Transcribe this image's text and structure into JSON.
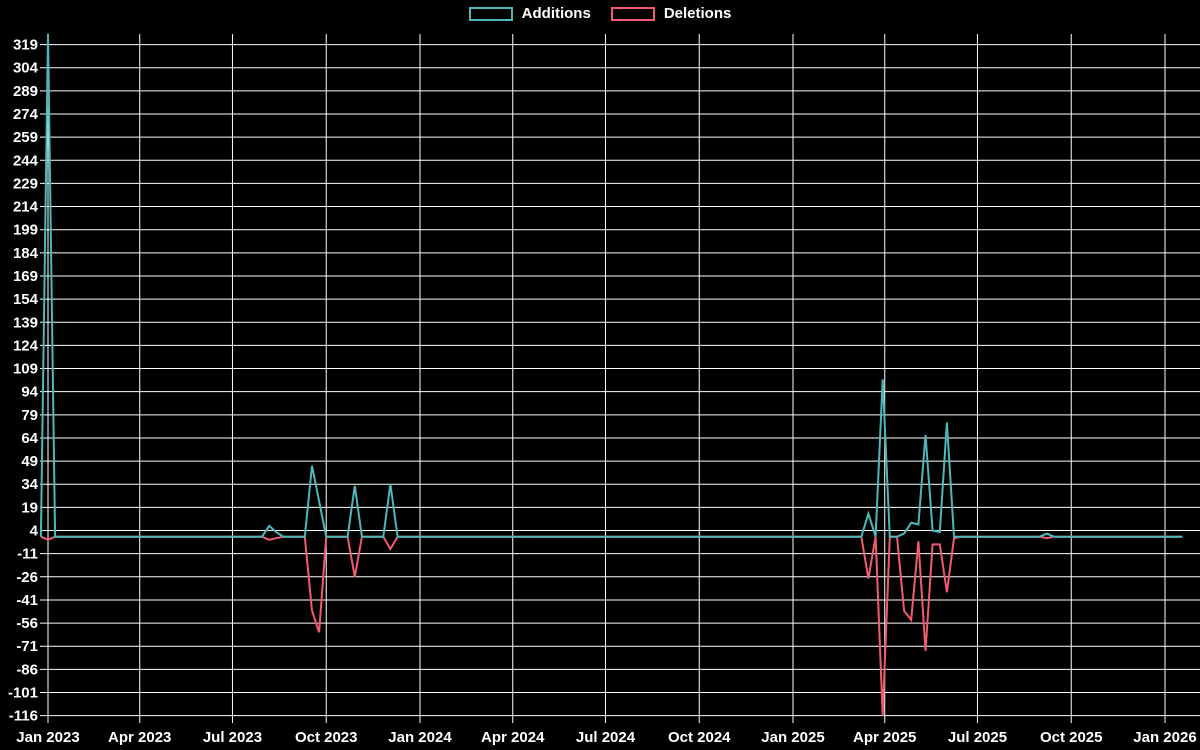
{
  "colors": {
    "background": "#000000",
    "grid": "#ffffff",
    "text": "#ffffff",
    "additions": "#4db8b8",
    "deletions": "#f25b6f"
  },
  "chart_data": {
    "type": "line",
    "title": "",
    "legend": [
      {
        "label": "Additions",
        "color": "#4db8b8"
      },
      {
        "label": "Deletions",
        "color": "#f25b6f"
      }
    ],
    "legend_position": "top-center",
    "grid": true,
    "x_ticks": [
      "Jan 2023",
      "Apr 2023",
      "Jul 2023",
      "Oct 2023",
      "Jan 2024",
      "Apr 2024",
      "Jul 2024",
      "Oct 2024",
      "Jan 2025",
      "Apr 2025",
      "Jul 2025",
      "Oct 2025",
      "Jan 2026"
    ],
    "y_ticks": [
      319,
      304,
      289,
      274,
      259,
      244,
      229,
      214,
      199,
      184,
      169,
      154,
      139,
      124,
      109,
      94,
      79,
      64,
      49,
      34,
      19,
      4,
      -11,
      -26,
      -41,
      -56,
      -71,
      -86,
      -101,
      -116
    ],
    "ylim": [
      -116,
      326
    ],
    "xlim": [
      "2022-12-25",
      "2026-01-18"
    ],
    "interval": "weekly",
    "series": [
      {
        "name": "Additions",
        "key": "additions"
      },
      {
        "name": "Deletions",
        "key": "deletions"
      }
    ],
    "points": [
      {
        "date": "2022-12-25",
        "additions": 0,
        "deletions": 0
      },
      {
        "date": "2023-01-01",
        "additions": 326,
        "deletions": -2
      },
      {
        "date": "2023-01-08",
        "additions": 0,
        "deletions": 0
      },
      {
        "date": "2023-08-06",
        "additions": 7,
        "deletions": -2
      },
      {
        "date": "2023-08-13",
        "additions": 3,
        "deletions": -1
      },
      {
        "date": "2023-09-17",
        "additions": 46,
        "deletions": -48
      },
      {
        "date": "2023-09-24",
        "additions": 23,
        "deletions": -62
      },
      {
        "date": "2023-10-29",
        "additions": 33,
        "deletions": -26
      },
      {
        "date": "2023-12-03",
        "additions": 34,
        "deletions": -8
      },
      {
        "date": "2025-03-16",
        "additions": 15,
        "deletions": -27
      },
      {
        "date": "2025-03-30",
        "additions": 102,
        "deletions": -116
      },
      {
        "date": "2025-04-20",
        "additions": 2,
        "deletions": -48
      },
      {
        "date": "2025-04-27",
        "additions": 9,
        "deletions": -54
      },
      {
        "date": "2025-05-04",
        "additions": 8,
        "deletions": -3
      },
      {
        "date": "2025-05-11",
        "additions": 66,
        "deletions": -74
      },
      {
        "date": "2025-05-18",
        "additions": 4,
        "deletions": -5
      },
      {
        "date": "2025-05-25",
        "additions": 3,
        "deletions": -5
      },
      {
        "date": "2025-06-01",
        "additions": 74,
        "deletions": -36
      },
      {
        "date": "2025-06-08",
        "additions": 0,
        "deletions": -1
      },
      {
        "date": "2025-09-07",
        "additions": 2,
        "deletions": -1
      },
      {
        "date": "2026-01-18",
        "additions": 0,
        "deletions": 0
      }
    ]
  }
}
